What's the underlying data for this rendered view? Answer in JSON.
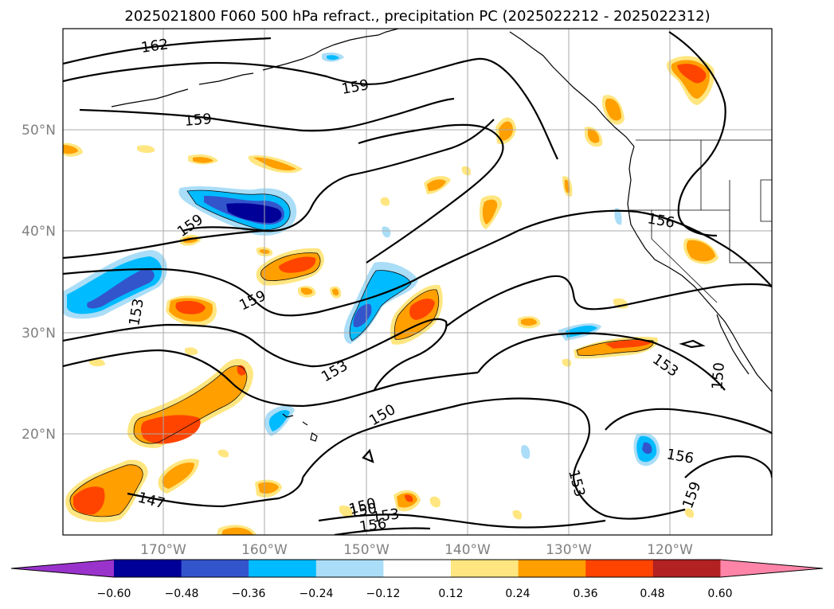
{
  "map": {
    "title": "2025021800 F060 500 hPa refract., precipitation PC (2025022212 - 2025022312)",
    "projection": "PlateCarree",
    "extent": {
      "lon_min": -180,
      "lon_max": -110,
      "lat_min": 10,
      "lat_max": 60
    },
    "lat_labels": [
      "50°N",
      "40°N",
      "30°N",
      "20°N"
    ],
    "lon_labels": [
      "170°W",
      "160°W",
      "150°W",
      "140°W",
      "130°W",
      "120°W"
    ],
    "colorbar": {
      "ticks": [
        "−0.60",
        "−0.48",
        "−0.36",
        "−0.24",
        "−0.12",
        "0.12",
        "0.24",
        "0.36",
        "0.48",
        "0.60"
      ],
      "colors": [
        "#9933cc",
        "#000099",
        "#3355cc",
        "#00bbff",
        "#aaddf7",
        "#ffffff",
        "#ffe680",
        "#ff9f00",
        "#ff4400",
        "#b22222",
        "#ff85a8"
      ]
    },
    "contour_labels": [
      "162",
      "159",
      "159",
      "159",
      "159",
      "156",
      "153",
      "153",
      "153",
      "150",
      "150",
      "150",
      "153",
      "156",
      "159",
      "147",
      "150",
      "153",
      "156"
    ]
  }
}
